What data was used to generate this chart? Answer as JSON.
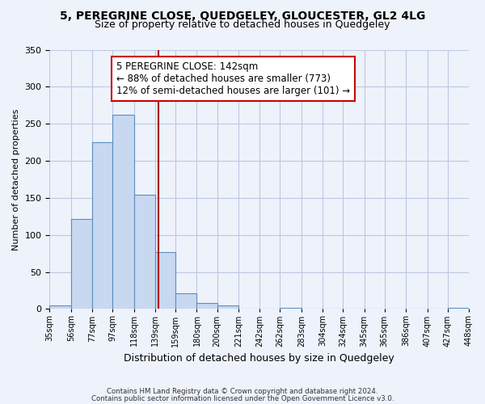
{
  "title": "5, PEREGRINE CLOSE, QUEDGELEY, GLOUCESTER, GL2 4LG",
  "subtitle": "Size of property relative to detached houses in Quedgeley",
  "xlabel": "Distribution of detached houses by size in Quedgeley",
  "ylabel": "Number of detached properties",
  "footer_line1": "Contains HM Land Registry data © Crown copyright and database right 2024.",
  "footer_line2": "Contains public sector information licensed under the Open Government Licence v3.0.",
  "annotation_title": "5 PEREGRINE CLOSE: 142sqm",
  "annotation_line2": "← 88% of detached houses are smaller (773)",
  "annotation_line3": "12% of semi-detached houses are larger (101) →",
  "property_line_x": 142,
  "bar_edges": [
    35,
    56,
    77,
    97,
    118,
    139,
    159,
    180,
    200,
    221,
    242,
    262,
    283,
    304,
    324,
    345,
    365,
    386,
    407,
    427,
    448
  ],
  "bar_heights": [
    5,
    122,
    225,
    262,
    154,
    77,
    21,
    8,
    5,
    0,
    0,
    2,
    0,
    0,
    0,
    0,
    0,
    0,
    0,
    2
  ],
  "bar_color": "#c8d8f0",
  "bar_edge_color": "#5a8fc0",
  "line_color": "#aa0000",
  "ylim": [
    0,
    350
  ],
  "background_color": "#eef2fb",
  "grid_color": "#c0c8e0",
  "annotation_box_color": "#ffffff",
  "annotation_box_edge": "#cc0000"
}
